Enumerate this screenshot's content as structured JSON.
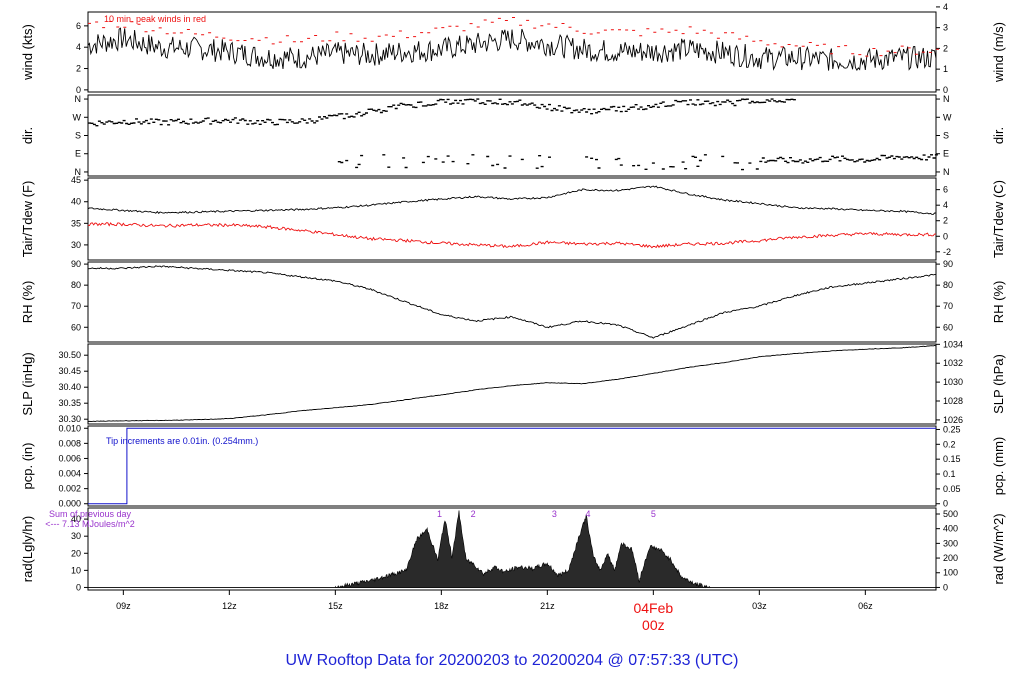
{
  "title": "UW Rooftop Data for 20200203  to  20200204 @ 07:57:33  (UTC)",
  "colors": {
    "main": "#000000",
    "red": "#ee1111",
    "blue": "#1111cc",
    "purple": "#9933cc",
    "title": "#1f24d6"
  },
  "chart_data": {
    "type": "line",
    "x_ticks": [
      "09z",
      "12z",
      "15z",
      "18z",
      "21z",
      "04Feb 00z",
      "03z",
      "06z"
    ],
    "x_tick_hours": [
      9,
      12,
      15,
      18,
      21,
      24,
      27,
      30
    ],
    "x_range_hours": [
      8,
      32
    ],
    "day_marker": {
      "date": "04Feb",
      "time": "00z"
    },
    "panels": [
      {
        "key": "wind",
        "ylabel": "wind (kts)",
        "ylabel_right": "wind (m/s)",
        "ylim": [
          -0.2,
          7.3
        ],
        "y_ticks": [
          0,
          2,
          4,
          6
        ],
        "y_ticks_right": [
          0,
          1,
          2,
          3,
          4
        ],
        "right_factor": 1.944,
        "annotation": "10 min. peak winds in red",
        "series": [
          {
            "x": [
              8,
              9,
              10,
              11,
              12,
              13,
              14,
              15,
              16,
              17,
              18,
              19,
              20,
              21,
              22,
              23,
              24,
              25,
              26,
              27,
              28,
              29,
              30,
              31,
              32
            ],
            "values": [
              4.2,
              4.8,
              4.0,
              3.9,
              3.6,
              3.1,
              3.0,
              3.4,
              3.3,
              3.6,
              3.8,
              4.3,
              4.8,
              4.3,
              3.8,
              3.6,
              3.6,
              3.8,
              3.5,
              3.0,
              3.0,
              2.8,
              2.8,
              3.0,
              3.0
            ]
          },
          {
            "x": [
              8,
              9,
              10,
              11,
              12,
              13,
              14,
              15,
              16,
              17,
              18,
              19,
              20,
              21,
              22,
              23,
              24,
              25,
              26,
              27,
              28,
              29,
              30,
              31,
              32
            ],
            "values": [
              6.2,
              6.2,
              5.7,
              5.2,
              5.0,
              4.8,
              4.6,
              5.0,
              4.9,
              5.2,
              5.6,
              6.1,
              6.4,
              6.1,
              5.6,
              5.4,
              5.4,
              5.6,
              5.1,
              4.5,
              4.2,
              3.8,
              3.6,
              3.7,
              3.7
            ]
          }
        ]
      },
      {
        "key": "dir",
        "ylabel": "dir.",
        "ylabel_right": "dir.",
        "ylim": [
          -20,
          380
        ],
        "y_tick_values": [
          0,
          90,
          180,
          270,
          360
        ],
        "y_tick_labels": [
          "N",
          "E",
          "S",
          "W",
          "N"
        ],
        "series": [
          {
            "name": "",
            "x": [
              8,
              9,
              10,
              11,
              12,
              13,
              14,
              15,
              16,
              17,
              18,
              19,
              20,
              21,
              22,
              23,
              24,
              25,
              26,
              27,
              28,
              29,
              30,
              31,
              32
            ],
            "values": [
              240,
              250,
              245,
              250,
              255,
              245,
              250,
              270,
              300,
              330,
              345,
              350,
              345,
              320,
              300,
              310,
              330,
              345,
              340,
              350,
              360,
              null,
              null,
              null,
              null
            ]
          },
          {
            "name": "",
            "x": [
              27,
              28,
              29,
              30,
              31,
              32
            ],
            "values": [
              60,
              55,
              65,
              60,
              75,
              70
            ]
          }
        ]
      },
      {
        "key": "temp",
        "ylabel": "Tair/Tdew (F)",
        "ylabel_right": "Tair/Tdew (C)",
        "ylim": [
          26.5,
          45.5
        ],
        "y_ticks": [
          30,
          35,
          40,
          45
        ],
        "y_ticks_right": [
          -2,
          0,
          2,
          4,
          6
        ],
        "series": [
          {
            "x": [
              8,
              9,
              10,
              11,
              12,
              13,
              14,
              15,
              16,
              17,
              18,
              19,
              20,
              21,
              22,
              23,
              24,
              25,
              26,
              27,
              28,
              29,
              30,
              31,
              32
            ],
            "values": [
              38.5,
              38.0,
              37.5,
              37.6,
              37.8,
              38.0,
              38.2,
              38.6,
              39.2,
              40.0,
              40.6,
              41.2,
              40.6,
              41.0,
              42.8,
              42.6,
              43.6,
              41.8,
              40.4,
              39.6,
              38.6,
              38.4,
              38.0,
              37.8,
              37.2
            ]
          },
          {
            "x": [
              8,
              9,
              10,
              11,
              12,
              13,
              14,
              15,
              16,
              17,
              18,
              19,
              20,
              21,
              22,
              23,
              24,
              25,
              26,
              27,
              28,
              29,
              30,
              31,
              32
            ],
            "values": [
              34.8,
              34.8,
              34.4,
              34.6,
              34.6,
              34.2,
              33.4,
              32.4,
              31.4,
              31.0,
              30.4,
              30.0,
              29.6,
              30.6,
              30.2,
              30.4,
              29.6,
              30.2,
              30.4,
              31.0,
              31.8,
              32.2,
              32.6,
              32.4,
              32.4
            ]
          }
        ]
      },
      {
        "key": "rh",
        "ylabel": "RH (%)",
        "ylabel_right": "RH (%)",
        "ylim": [
          53,
          91
        ],
        "y_ticks": [
          60,
          70,
          80,
          90
        ],
        "y_ticks_right": [
          60,
          70,
          80,
          90
        ],
        "series": [
          {
            "x": [
              8,
              9,
              10,
              11,
              12,
              13,
              14,
              15,
              16,
              17,
              18,
              19,
              20,
              21,
              22,
              23,
              24,
              25,
              26,
              27,
              28,
              29,
              30,
              31,
              32
            ],
            "values": [
              88,
              88,
              89,
              88,
              87,
              86,
              84,
              82,
              78,
              72,
              66,
              63,
              65,
              60,
              63,
              61,
              55,
              61,
              67,
              70,
              75,
              79,
              81,
              83,
              85
            ]
          }
        ]
      },
      {
        "key": "slp",
        "ylabel": "SLP (inHg)",
        "ylabel_right": "SLP (hPa)",
        "ylim": [
          30.285,
          30.535
        ],
        "y_ticks": [
          30.3,
          30.35,
          30.4,
          30.45,
          30.5
        ],
        "y_ticks_right": [
          1026,
          1028,
          1030,
          1032,
          1034
        ],
        "y_decimals": 2,
        "series": [
          {
            "x": [
              8,
              9,
              10,
              11,
              12,
              13,
              14,
              15,
              16,
              17,
              18,
              19,
              20,
              21,
              22,
              23,
              24,
              25,
              26,
              27,
              28,
              29,
              30,
              31,
              32
            ],
            "values": [
              30.293,
              30.295,
              30.296,
              30.298,
              30.302,
              30.313,
              30.326,
              30.336,
              30.346,
              30.361,
              30.376,
              30.392,
              30.405,
              30.414,
              30.411,
              30.425,
              30.443,
              30.462,
              30.477,
              30.495,
              30.505,
              30.513,
              30.519,
              30.523,
              30.53
            ]
          }
        ]
      },
      {
        "key": "pcp",
        "ylabel": "pcp. (in)",
        "ylabel_right": "pcp. (mm)",
        "ylim": [
          -0.0003,
          0.0103
        ],
        "y_ticks": [
          0,
          0.002,
          0.004,
          0.006,
          0.008,
          0.01
        ],
        "y_ticks_right": [
          0,
          0.05,
          0.1,
          0.15,
          0.2,
          0.25
        ],
        "y_decimals": 3,
        "annotation": "Tip increments are 0.01in. (0.254mm.)",
        "series": [
          {
            "x": [
              8,
              9.1,
              9.1,
              32
            ],
            "values": [
              0,
              0,
              0.01,
              0.01
            ]
          }
        ]
      },
      {
        "key": "rad",
        "ylabel": "rad(Lgly/hr)",
        "ylabel_right": "rad (W/m^2)",
        "ylim": [
          -1.5,
          46.5
        ],
        "y_ticks": [
          0,
          10,
          20,
          30,
          40
        ],
        "y_ticks_right": [
          0,
          100,
          200,
          300,
          400,
          500
        ],
        "sum_label": "Sum of previous day",
        "sum_value": "<--- 7.13 MJoules/m^2",
        "peak_labels": [
          "1",
          "2",
          "3",
          "4",
          "5"
        ],
        "peak_hours": [
          17.95,
          18.9,
          21.2,
          22.15,
          24.0
        ],
        "series": [
          {
            "x": [
              15.0,
              15.5,
              16.0,
              16.5,
              17.0,
              17.3,
              17.6,
              17.9,
              18.1,
              18.3,
              18.5,
              18.7,
              18.9,
              19.2,
              19.5,
              19.8,
              20.2,
              20.6,
              21.0,
              21.3,
              21.6,
              21.9,
              22.1,
              22.3,
              22.5,
              22.7,
              22.9,
              23.1,
              23.4,
              23.6,
              23.9,
              24.2,
              24.5,
              24.8,
              25.2,
              25.6
            ],
            "values": [
              0,
              2,
              4,
              7,
              10,
              28,
              34,
              16,
              40,
              18,
              44,
              16,
              14,
              8,
              12,
              9,
              12,
              11,
              14,
              7,
              10,
              30,
              42,
              18,
              10,
              20,
              10,
              26,
              22,
              4,
              24,
              22,
              16,
              6,
              2,
              0
            ]
          }
        ]
      }
    ]
  }
}
